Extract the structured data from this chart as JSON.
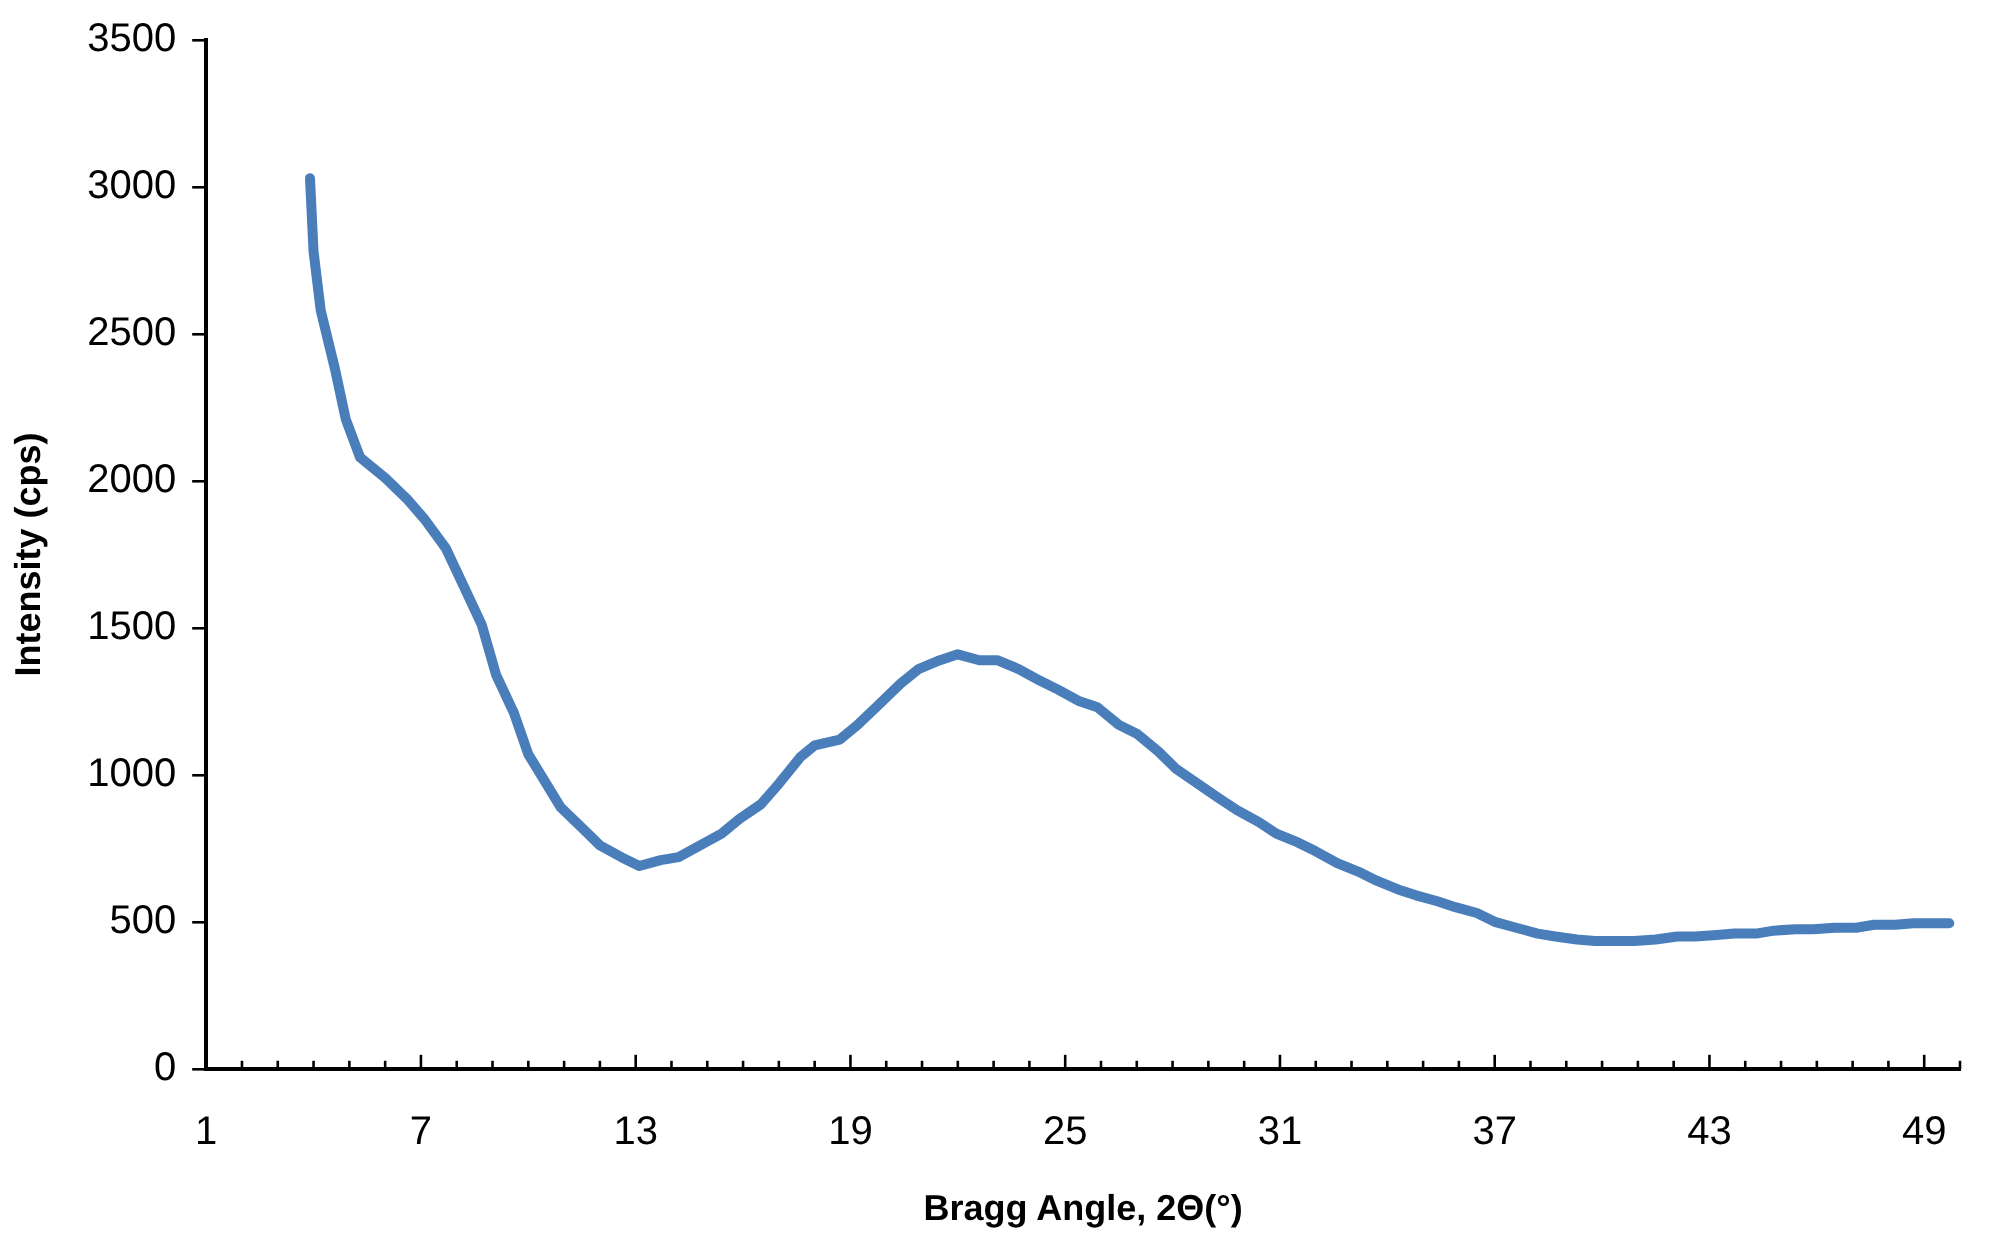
{
  "chart_data": {
    "type": "line",
    "xlabel": "Bragg Angle, 2Θ(°)",
    "ylabel": "Intensity (cps)",
    "xlim": [
      1,
      50
    ],
    "ylim": [
      0,
      3500
    ],
    "xticks": [
      1,
      {
        "value": 2,
        "label": null
      },
      {
        "value": 3,
        "label": null
      },
      {
        "value": 4,
        "label": null
      },
      {
        "value": 5,
        "label": null
      },
      {
        "value": 6,
        "label": null
      },
      7,
      {
        "value": 8,
        "label": null
      },
      {
        "value": 9,
        "label": null
      },
      {
        "value": 10,
        "label": null
      },
      {
        "value": 11,
        "label": null
      },
      {
        "value": 12,
        "label": null
      },
      13,
      {
        "value": 14,
        "label": null
      },
      {
        "value": 15,
        "label": null
      },
      {
        "value": 16,
        "label": null
      },
      {
        "value": 17,
        "label": null
      },
      {
        "value": 18,
        "label": null
      },
      19,
      {
        "value": 20,
        "label": null
      },
      {
        "value": 21,
        "label": null
      },
      {
        "value": 22,
        "label": null
      },
      {
        "value": 23,
        "label": null
      },
      {
        "value": 24,
        "label": null
      },
      25,
      {
        "value": 26,
        "label": null
      },
      {
        "value": 27,
        "label": null
      },
      {
        "value": 28,
        "label": null
      },
      {
        "value": 29,
        "label": null
      },
      {
        "value": 30,
        "label": null
      },
      31,
      {
        "value": 32,
        "label": null
      },
      {
        "value": 33,
        "label": null
      },
      {
        "value": 34,
        "label": null
      },
      {
        "value": 35,
        "label": null
      },
      {
        "value": 36,
        "label": null
      },
      37,
      {
        "value": 38,
        "label": null
      },
      {
        "value": 39,
        "label": null
      },
      {
        "value": 40,
        "label": null
      },
      {
        "value": 41,
        "label": null
      },
      {
        "value": 42,
        "label": null
      },
      43,
      {
        "value": 44,
        "label": null
      },
      {
        "value": 45,
        "label": null
      },
      {
        "value": 46,
        "label": null
      },
      {
        "value": 47,
        "label": null
      },
      {
        "value": 48,
        "label": null
      },
      49,
      {
        "value": 50,
        "label": null
      }
    ],
    "yticks": [
      0,
      500,
      1000,
      1500,
      2000,
      2500,
      3000,
      3500
    ],
    "grid": false,
    "legend": false,
    "marker": "none",
    "line_style": "solid",
    "series": [
      {
        "color": "#4a7ebb",
        "x": [
          3.9,
          4.0,
          4.2,
          4.6,
          4.9,
          5.3,
          6.0,
          6.6,
          7.1,
          7.7,
          8.2,
          8.7,
          9.1,
          9.6,
          10.0,
          10.5,
          10.9,
          11.5,
          12.0,
          12.6,
          13.1,
          13.7,
          14.2,
          14.8,
          15.4,
          15.9,
          16.5,
          17.0,
          17.6,
          18.0,
          18.7,
          19.2,
          19.8,
          20.4,
          20.9,
          21.5,
          22.0,
          22.6,
          23.1,
          23.7,
          24.3,
          24.8,
          25.4,
          25.9,
          26.5,
          27.0,
          27.6,
          28.1,
          28.7,
          29.3,
          29.8,
          30.4,
          30.9,
          31.5,
          32.0,
          32.6,
          33.2,
          33.7,
          34.3,
          34.8,
          35.4,
          35.9,
          36.5,
          37.0,
          37.6,
          38.2,
          38.7,
          39.3,
          39.8,
          40.4,
          40.9,
          41.5,
          42.1,
          42.6,
          43.2,
          43.7,
          44.3,
          44.8,
          45.4,
          45.9,
          46.5,
          47.1,
          47.6,
          48.2,
          48.7,
          49.3,
          49.7
        ],
        "values": [
          3030,
          2780,
          2580,
          2380,
          2210,
          2080,
          2010,
          1940,
          1870,
          1770,
          1640,
          1510,
          1340,
          1210,
          1070,
          970,
          890,
          820,
          760,
          720,
          690,
          710,
          720,
          760,
          800,
          850,
          900,
          970,
          1060,
          1100,
          1120,
          1170,
          1240,
          1310,
          1360,
          1390,
          1410,
          1390,
          1390,
          1360,
          1320,
          1290,
          1250,
          1230,
          1170,
          1140,
          1080,
          1020,
          970,
          920,
          880,
          840,
          800,
          770,
          740,
          700,
          670,
          640,
          610,
          590,
          570,
          550,
          530,
          500,
          480,
          460,
          450,
          440,
          435,
          435,
          435,
          440,
          450,
          450,
          455,
          460,
          460,
          470,
          475,
          475,
          480,
          480,
          490,
          490,
          495,
          495,
          495
        ]
      }
    ]
  }
}
